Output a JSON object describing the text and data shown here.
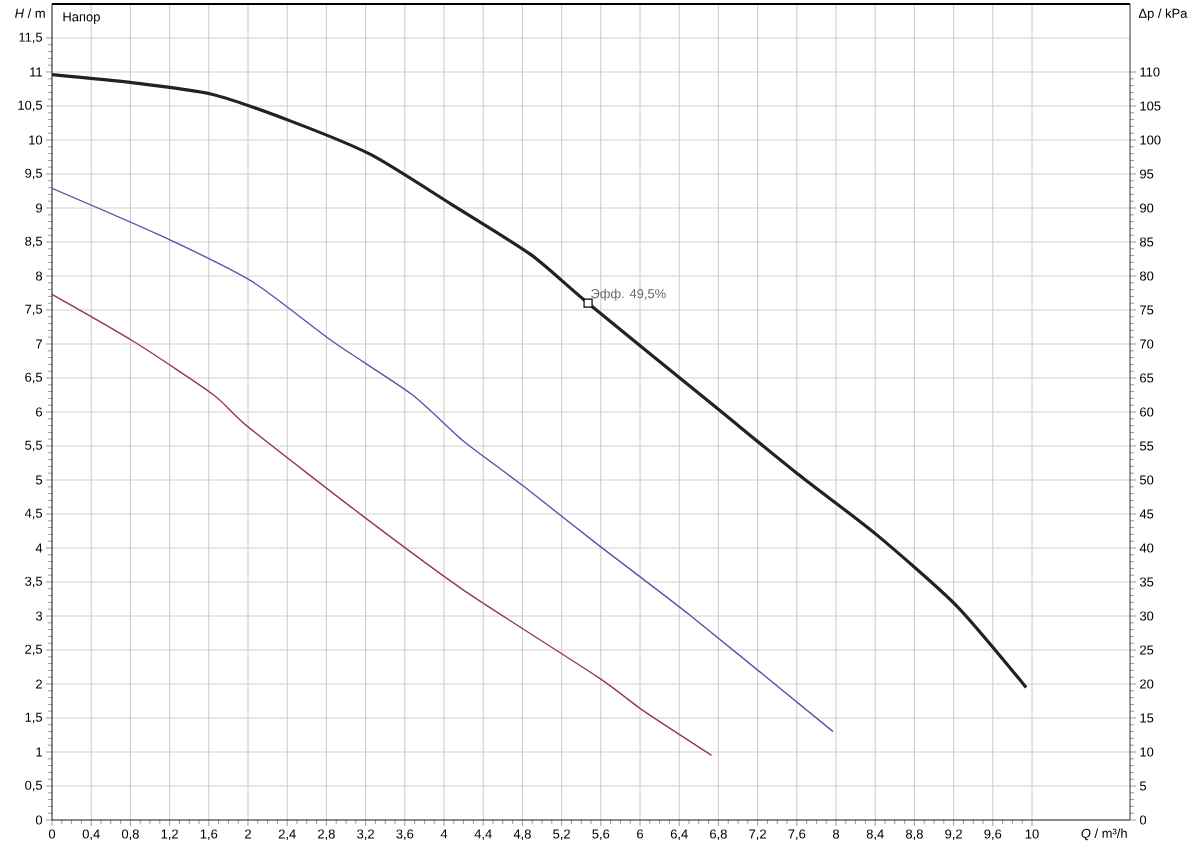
{
  "chart_data": {
    "type": "line",
    "xlabel": "*Q* / m³/h",
    "ylabel": "*H* / m",
    "y2label": "Δp / kPa",
    "annotations": [
      "Напор",
      {
        "text": "Эфф.  49,5%",
        "x": 5.47,
        "y": 7.6
      }
    ],
    "series": [
      {
        "color": "#222222",
        "x": [
          0,
          0.83,
          1.64,
          2.45,
          3.26,
          4.08,
          4.89,
          5.47,
          6.79,
          7.6,
          8.41,
          9.23,
          9.94
        ],
        "values": [
          10.96,
          10.84,
          10.67,
          10.27,
          9.78,
          9.05,
          8.31,
          7.6,
          6.05,
          5.1,
          4.2,
          3.15,
          1.95
        ]
      },
      {
        "color": "#5555aa",
        "x": [
          0,
          1.1,
          2.04,
          2.86,
          3.67,
          4.2,
          4.82,
          5.56,
          6.52,
          7.97
        ],
        "values": [
          9.29,
          8.6,
          7.92,
          7.04,
          6.26,
          5.57,
          4.9,
          4.06,
          3.0,
          1.3
        ]
      },
      {
        "color": "#993366",
        "x": [
          0,
          0.83,
          1.64,
          2.01,
          3.19,
          4.21,
          5.57,
          6.04,
          6.73
        ],
        "values": [
          7.73,
          7.04,
          6.26,
          5.77,
          4.45,
          3.37,
          2.1,
          1.6,
          0.95
        ]
      }
    ],
    "xlim": [
      0,
      11
    ],
    "ylim": [
      0,
      12
    ],
    "y2lim": [
      0,
      120
    ],
    "xticks": [
      0,
      {
        "value": 0.4,
        "label": "0,4"
      },
      {
        "value": 0.8,
        "label": "0,8"
      },
      {
        "value": 1.2,
        "label": "1,2"
      },
      {
        "value": 1.6,
        "label": "1,6"
      },
      2,
      {
        "value": 2.4,
        "label": "2,4"
      },
      {
        "value": 2.8,
        "label": "2,8"
      },
      {
        "value": 3.2,
        "label": "3,2"
      },
      {
        "value": 3.6,
        "label": "3,6"
      },
      4,
      {
        "value": 4.4,
        "label": "4,4"
      },
      {
        "value": 4.8,
        "label": "4,8"
      },
      {
        "value": 5.2,
        "label": "5,2"
      },
      {
        "value": 5.6,
        "label": "5,6"
      },
      6,
      {
        "value": 6.4,
        "label": "6,4"
      },
      {
        "value": 6.8,
        "label": "6,8"
      },
      {
        "value": 7.2,
        "label": "7,2"
      },
      {
        "value": 7.6,
        "label": "7,6"
      },
      8,
      {
        "value": 8.4,
        "label": "8,4"
      },
      {
        "value": 8.8,
        "label": "8,8"
      },
      {
        "value": 9.2,
        "label": "9,2"
      },
      {
        "value": 9.6,
        "label": "9,6"
      },
      10
    ],
    "yticks": [
      0,
      {
        "value": 0.5,
        "label": "0,5"
      },
      1,
      {
        "value": 1.5,
        "label": "1,5"
      },
      2,
      {
        "value": 2.5,
        "label": "2,5"
      },
      3,
      {
        "value": 3.5,
        "label": "3,5"
      },
      4,
      {
        "value": 4.5,
        "label": "4,5"
      },
      5,
      {
        "value": 5.5,
        "label": "5,5"
      },
      6,
      {
        "value": 6.5,
        "label": "6,5"
      },
      7,
      {
        "value": 7.5,
        "label": "7,5"
      },
      8,
      {
        "value": 8.5,
        "label": "8,5"
      },
      9,
      {
        "value": 9.5,
        "label": "9,5"
      },
      10,
      {
        "value": 10.5,
        "label": "10,5"
      },
      11,
      {
        "value": 11.5,
        "label": "11,5"
      }
    ],
    "y2ticks": [
      0,
      5,
      10,
      15,
      20,
      25,
      30,
      35,
      40,
      45,
      50,
      55,
      60,
      65,
      70,
      75,
      80,
      85,
      90,
      95,
      100,
      105,
      110
    ],
    "grid": true,
    "marker": "none",
    "line_style": "solid"
  }
}
